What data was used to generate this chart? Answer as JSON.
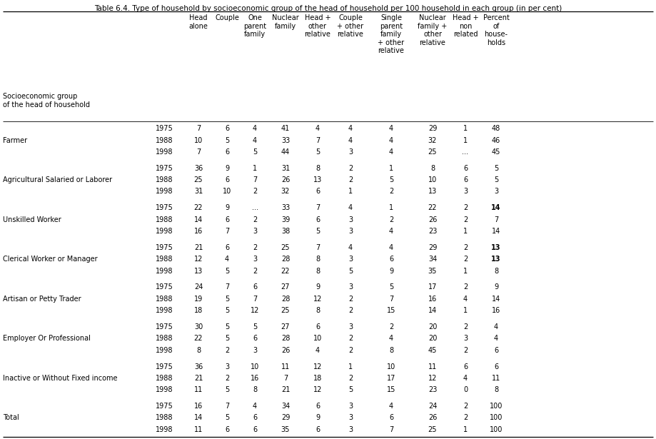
{
  "title": "Table 6.4. Type of household by socioeconomic group of the head of household per 100 household in each group (in per cent)",
  "col_headers": [
    [
      "Head",
      "alone"
    ],
    [
      "Couple"
    ],
    [
      "One",
      "parent",
      "family"
    ],
    [
      "Nuclear",
      "family"
    ],
    [
      "Head +",
      "other",
      "relative"
    ],
    [
      "Couple",
      "+ other",
      "relative"
    ],
    [
      "Single",
      "parent",
      "family",
      "+ other",
      "relative"
    ],
    [
      "Nuclear",
      "family +",
      "other",
      "relative"
    ],
    [
      "Head +",
      "non",
      "related"
    ],
    [
      "Percent",
      "of",
      "house-",
      "holds"
    ]
  ],
  "row_label_header_line1": "Socioeconomic group",
  "row_label_header_line2": "of the head of household",
  "rows": [
    {
      "group": "Farmer",
      "data": [
        [
          "1975",
          "7",
          "6",
          "4",
          "41",
          "4",
          "4",
          "4",
          "29",
          "1",
          "48"
        ],
        [
          "1988",
          "10",
          "5",
          "4",
          "33",
          "7",
          "4",
          "4",
          "32",
          "1",
          "46"
        ],
        [
          "1998",
          "7",
          "6",
          "5",
          "44",
          "5",
          "3",
          "4",
          "25",
          "...",
          "45"
        ]
      ]
    },
    {
      "group": "Agricultural Salaried or Laborer",
      "data": [
        [
          "1975",
          "36",
          "9",
          "1",
          "31",
          "8",
          "2",
          "1",
          "8",
          "6",
          "5"
        ],
        [
          "1988",
          "25",
          "6",
          "7",
          "26",
          "13",
          "2",
          "5",
          "10",
          "6",
          "5"
        ],
        [
          "1998",
          "31",
          "10",
          "2",
          "32",
          "6",
          "1",
          "2",
          "13",
          "3",
          "3"
        ]
      ]
    },
    {
      "group": "Unskilled Worker",
      "data": [
        [
          "1975",
          "22",
          "9",
          "...",
          "33",
          "7",
          "4",
          "1",
          "22",
          "2",
          "14"
        ],
        [
          "1988",
          "14",
          "6",
          "2",
          "39",
          "6",
          "3",
          "2",
          "26",
          "2",
          "7"
        ],
        [
          "1998",
          "16",
          "7",
          "3",
          "38",
          "5",
          "3",
          "4",
          "23",
          "1",
          "14"
        ]
      ]
    },
    {
      "group": "Clerical Worker or Manager",
      "data": [
        [
          "1975",
          "21",
          "6",
          "2",
          "25",
          "7",
          "4",
          "4",
          "29",
          "2",
          "13"
        ],
        [
          "1988",
          "12",
          "4",
          "3",
          "28",
          "8",
          "3",
          "6",
          "34",
          "2",
          "13"
        ],
        [
          "1998",
          "13",
          "5",
          "2",
          "22",
          "8",
          "5",
          "9",
          "35",
          "1",
          "8"
        ]
      ]
    },
    {
      "group": "Artisan or Petty Trader",
      "data": [
        [
          "1975",
          "24",
          "7",
          "6",
          "27",
          "9",
          "3",
          "5",
          "17",
          "2",
          "9"
        ],
        [
          "1988",
          "19",
          "5",
          "7",
          "28",
          "12",
          "2",
          "7",
          "16",
          "4",
          "14"
        ],
        [
          "1998",
          "18",
          "5",
          "12",
          "25",
          "8",
          "2",
          "15",
          "14",
          "1",
          "16"
        ]
      ]
    },
    {
      "group": "Employer Or Professional",
      "data": [
        [
          "1975",
          "30",
          "5",
          "5",
          "27",
          "6",
          "3",
          "2",
          "20",
          "2",
          "4"
        ],
        [
          "1988",
          "22",
          "5",
          "6",
          "28",
          "10",
          "2",
          "4",
          "20",
          "3",
          "4"
        ],
        [
          "1998",
          "8",
          "2",
          "3",
          "26",
          "4",
          "2",
          "8",
          "45",
          "2",
          "6"
        ]
      ]
    },
    {
      "group": "Inactive or Without Fixed income",
      "data": [
        [
          "1975",
          "36",
          "3",
          "10",
          "11",
          "12",
          "1",
          "10",
          "11",
          "6",
          "6"
        ],
        [
          "1988",
          "21",
          "2",
          "16",
          "7",
          "18",
          "2",
          "17",
          "12",
          "4",
          "11"
        ],
        [
          "1998",
          "11",
          "5",
          "8",
          "21",
          "12",
          "5",
          "15",
          "23",
          "0",
          "8"
        ]
      ]
    },
    {
      "group": "Total",
      "data": [
        [
          "1975",
          "16",
          "7",
          "4",
          "34",
          "6",
          "3",
          "4",
          "24",
          "2",
          "100"
        ],
        [
          "1988",
          "14",
          "5",
          "6",
          "29",
          "9",
          "3",
          "6",
          "26",
          "2",
          "100"
        ],
        [
          "1998",
          "11",
          "6",
          "6",
          "35",
          "6",
          "3",
          "7",
          "25",
          "1",
          "100"
        ]
      ]
    }
  ],
  "bold_cells": [
    [
      "Unskilled Worker",
      0,
      10
    ],
    [
      "Clerical Worker or Manager",
      0,
      10
    ],
    [
      "Clerical Worker or Manager",
      1,
      10
    ]
  ],
  "fig_width": 9.19,
  "fig_height": 6.15,
  "dpi": 100,
  "font_size": 7.0,
  "title_font_size": 7.5
}
